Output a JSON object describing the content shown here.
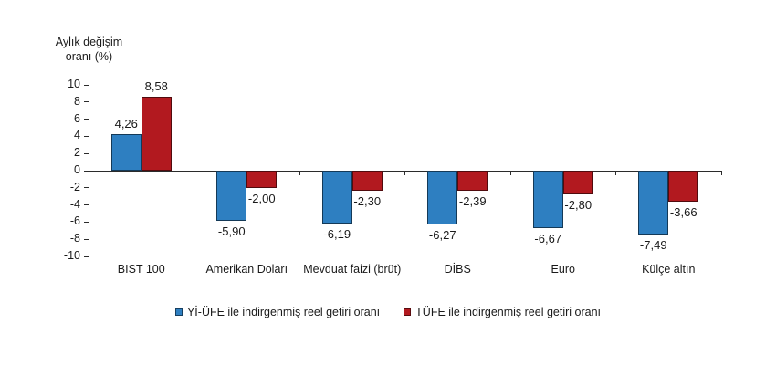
{
  "page": {
    "background": "#ffffff"
  },
  "chart_data": {
    "type": "bar",
    "title": "",
    "ylabel": "Aylık değişim oranı (%)",
    "ylabel_lines": [
      "Aylık değişim",
      "oranı (%)"
    ],
    "ylim": [
      -10,
      10
    ],
    "ytick_step": 2,
    "ytick_labels": [
      "10",
      "8",
      "6",
      "4",
      "2",
      "0",
      "-2",
      "-4",
      "-6",
      "-8",
      "-10"
    ],
    "grid": false,
    "legend_position": "bottom-center",
    "categories": [
      "BIST 100",
      "Amerikan Doları",
      "Mevduat faizi (brüt)",
      "DİBS",
      "Euro",
      "Külçe altın"
    ],
    "series": [
      {
        "name": "Yİ-ÜFE ile indirgenmiş reel getiri oranı",
        "color": "#2e7fc1",
        "values": [
          4.26,
          -5.9,
          -6.19,
          -6.27,
          -6.67,
          -7.49
        ]
      },
      {
        "name": "TÜFE ile indirgenmiş reel getiri oranı",
        "color": "#b2191f",
        "values": [
          8.58,
          -2.0,
          -2.3,
          -2.39,
          -2.8,
          -3.66
        ]
      }
    ],
    "value_labels": [
      [
        "4,26",
        "-5,90",
        "-6,19",
        "-6,27",
        "-6,67",
        "-7,49"
      ],
      [
        "8,58",
        "-2,00",
        "-2,30",
        "-2,39",
        "-2,80",
        "-3,66"
      ]
    ]
  }
}
